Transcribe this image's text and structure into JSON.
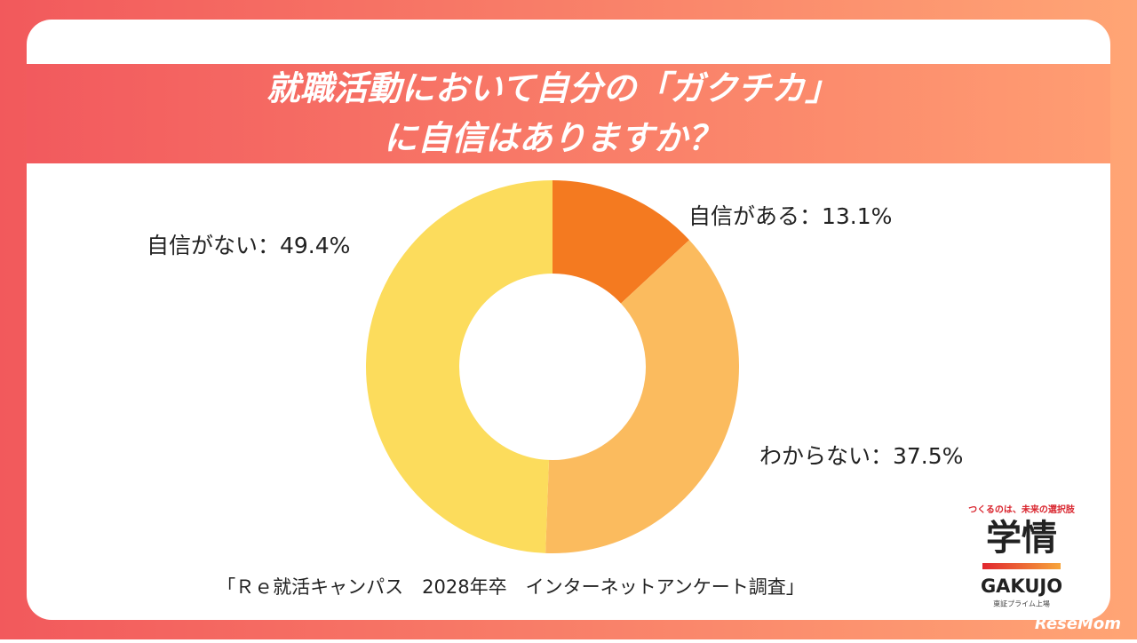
{
  "chart_data": {
    "type": "pie",
    "title": [
      "就職活動において自分の「ガクチカ」",
      "に自信はありますか？"
    ],
    "values": [
      13.1,
      37.5,
      49.4
    ],
    "value_labels": [
      "自信がある：13.1%",
      "わからない：37.5%",
      "自信がない：49.4%"
    ],
    "colors": [
      "#f47a20",
      "#fbbb5e",
      "#fcdc5c"
    ],
    "source": "「Ｒｅ就活キャンパス　2028年卒　インターネットアンケート調査」"
  },
  "logo": {
    "tagline": "つくるのは、未来の選択肢",
    "name": "学情",
    "roman": "GAKUJO",
    "listing": "東証プライム上場"
  },
  "watermark": "ReseMom"
}
